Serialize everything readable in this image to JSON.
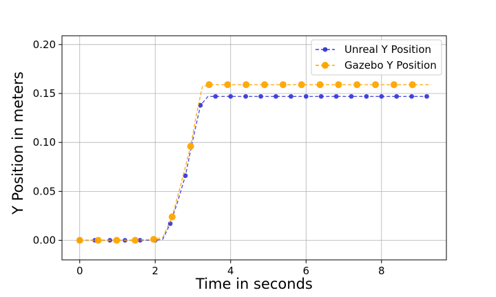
{
  "chart_data": {
    "type": "line",
    "title": "",
    "xlabel": "Time in seconds",
    "ylabel": "Y Position in meters",
    "xlim": [
      -0.47,
      9.72
    ],
    "ylim": [
      -0.02,
      0.209
    ],
    "xticks": [
      0,
      2,
      4,
      6,
      8
    ],
    "yticks": [
      0.0,
      0.05,
      0.1,
      0.15,
      0.2
    ],
    "xtick_labels": [
      "0",
      "2",
      "4",
      "6",
      "8"
    ],
    "ytick_labels": [
      "0.00",
      "0.05",
      "0.10",
      "0.15",
      "0.20"
    ],
    "grid": true,
    "legend_position": "top-right",
    "series": [
      {
        "name": "Unreal Y Position",
        "color": "#3b3bd9",
        "linestyle": "dashed",
        "marker": "circle-small",
        "x": [
          0.0,
          0.4,
          0.8,
          1.2,
          1.6,
          2.0,
          2.2,
          2.4,
          2.6,
          2.8,
          3.0,
          3.2,
          3.4,
          3.6,
          4.0,
          4.4,
          4.8,
          5.2,
          5.6,
          6.0,
          6.4,
          6.8,
          7.2,
          7.6,
          8.0,
          8.4,
          8.8,
          9.2
        ],
        "y": [
          0.0,
          0.0,
          0.0,
          0.0,
          0.0,
          0.0,
          0.001,
          0.017,
          0.04,
          0.066,
          0.103,
          0.138,
          0.147,
          0.147,
          0.147,
          0.147,
          0.147,
          0.147,
          0.147,
          0.147,
          0.147,
          0.147,
          0.147,
          0.147,
          0.147,
          0.147,
          0.147,
          0.147
        ],
        "marker_x": [
          0.0,
          0.4,
          0.8,
          1.2,
          1.6,
          2.0,
          2.4,
          2.8,
          3.2,
          3.6,
          4.0,
          4.4,
          4.8,
          5.2,
          5.6,
          6.0,
          6.4,
          6.8,
          7.2,
          7.6,
          8.0,
          8.4,
          8.8,
          9.2
        ],
        "marker_y": [
          0.0,
          0.0,
          0.0,
          0.0,
          0.0,
          0.0,
          0.017,
          0.066,
          0.138,
          0.147,
          0.147,
          0.147,
          0.147,
          0.147,
          0.147,
          0.147,
          0.147,
          0.147,
          0.147,
          0.147,
          0.147,
          0.147,
          0.147,
          0.147
        ]
      },
      {
        "name": "Gazebo Y Position",
        "color": "#ffa500",
        "linestyle": "dashed",
        "marker": "circle-large",
        "x": [
          0.0,
          0.49,
          0.98,
          1.47,
          1.96,
          2.2,
          2.45,
          2.7,
          2.94,
          3.1,
          3.25,
          3.43,
          3.92,
          4.41,
          4.9,
          5.39,
          5.88,
          6.37,
          6.86,
          7.35,
          7.84,
          8.33,
          8.82,
          9.31
        ],
        "y": [
          0.0,
          0.0,
          0.0,
          0.0,
          0.001,
          0.003,
          0.024,
          0.06,
          0.096,
          0.13,
          0.157,
          0.159,
          0.159,
          0.159,
          0.159,
          0.159,
          0.159,
          0.159,
          0.159,
          0.159,
          0.159,
          0.159,
          0.159,
          0.159
        ],
        "marker_x": [
          0.0,
          0.49,
          0.98,
          1.47,
          1.96,
          2.45,
          2.94,
          3.43,
          3.92,
          4.41,
          4.9,
          5.39,
          5.88,
          6.37,
          6.86,
          7.35,
          7.84,
          8.33,
          8.82
        ],
        "marker_y": [
          0.0,
          0.0,
          0.0,
          0.0,
          0.001,
          0.024,
          0.096,
          0.159,
          0.159,
          0.159,
          0.159,
          0.159,
          0.159,
          0.159,
          0.159,
          0.159,
          0.159,
          0.159,
          0.159
        ]
      }
    ]
  }
}
